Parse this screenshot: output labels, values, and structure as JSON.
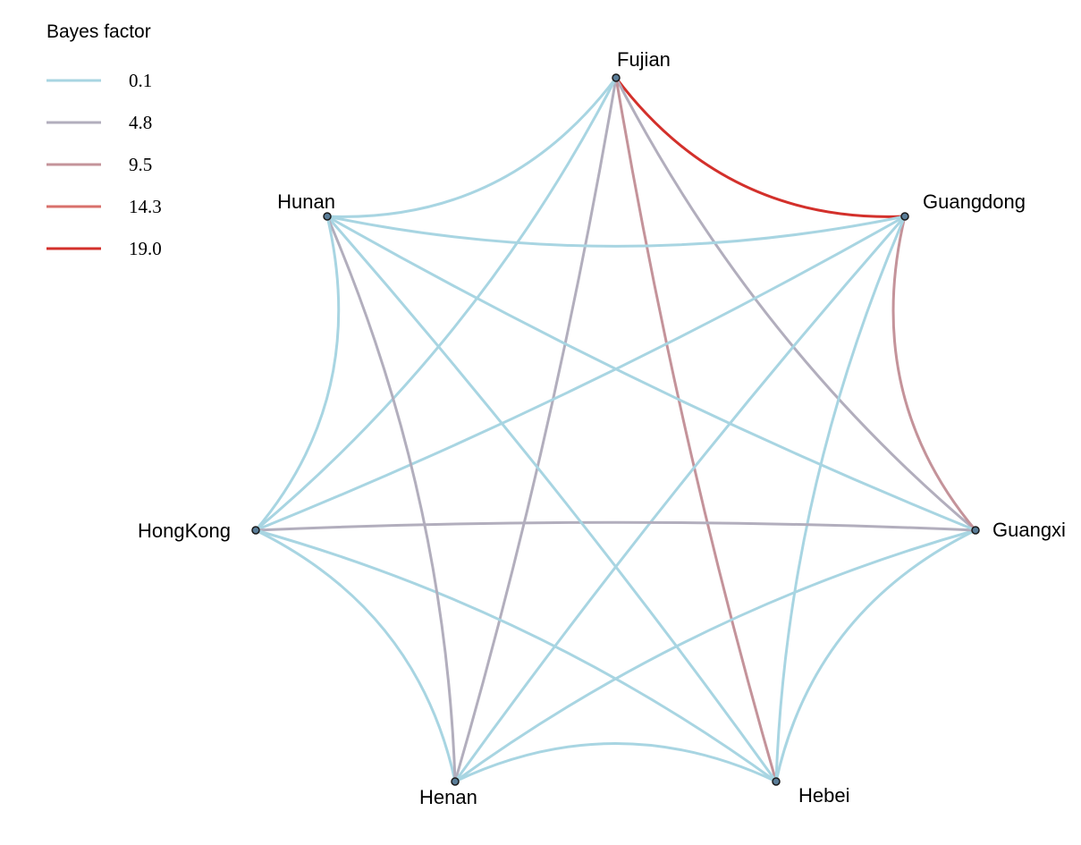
{
  "legend": {
    "title": "Bayes factor",
    "items": [
      {
        "label": "0.1",
        "color": "#a8d5e2"
      },
      {
        "label": "4.8",
        "color": "#b2aebd"
      },
      {
        "label": "9.5",
        "color": "#c4939a"
      },
      {
        "label": "14.3",
        "color": "#d8706b"
      },
      {
        "label": "19.0",
        "color": "#d3302b"
      }
    ]
  },
  "nodes": [
    {
      "id": "fujian",
      "label": "Fujian",
      "color": "#5a7d98"
    },
    {
      "id": "guangdong",
      "label": "Guangdong",
      "color": "#5a7d98"
    },
    {
      "id": "guangxi",
      "label": "Guangxi",
      "color": "#5a7d98"
    },
    {
      "id": "hebei",
      "label": "Hebei",
      "color": "#5a7d98"
    },
    {
      "id": "henan",
      "label": "Henan",
      "color": "#5a7d98"
    },
    {
      "id": "hongkong",
      "label": "HongKong",
      "color": "#5a7d98"
    },
    {
      "id": "hunan",
      "label": "Hunan",
      "color": "#5a7d98"
    }
  ],
  "edges": [
    {
      "from": "fujian",
      "to": "guangdong",
      "bayes_factor": 19.0
    },
    {
      "from": "fujian",
      "to": "guangxi",
      "bayes_factor": 4.8
    },
    {
      "from": "fujian",
      "to": "hebei",
      "bayes_factor": 9.5
    },
    {
      "from": "fujian",
      "to": "henan",
      "bayes_factor": 4.8
    },
    {
      "from": "fujian",
      "to": "hongkong",
      "bayes_factor": 0.1
    },
    {
      "from": "fujian",
      "to": "hunan",
      "bayes_factor": 0.1
    },
    {
      "from": "guangdong",
      "to": "guangxi",
      "bayes_factor": 9.5
    },
    {
      "from": "guangdong",
      "to": "hebei",
      "bayes_factor": 0.1
    },
    {
      "from": "guangdong",
      "to": "henan",
      "bayes_factor": 0.1
    },
    {
      "from": "guangdong",
      "to": "hongkong",
      "bayes_factor": 0.1
    },
    {
      "from": "guangdong",
      "to": "hunan",
      "bayes_factor": 0.1
    },
    {
      "from": "guangxi",
      "to": "hebei",
      "bayes_factor": 0.1
    },
    {
      "from": "guangxi",
      "to": "henan",
      "bayes_factor": 0.1
    },
    {
      "from": "guangxi",
      "to": "hongkong",
      "bayes_factor": 4.8
    },
    {
      "from": "guangxi",
      "to": "hunan",
      "bayes_factor": 0.1
    },
    {
      "from": "hebei",
      "to": "henan",
      "bayes_factor": 0.1
    },
    {
      "from": "hebei",
      "to": "hongkong",
      "bayes_factor": 0.1
    },
    {
      "from": "hebei",
      "to": "hunan",
      "bayes_factor": 0.1
    },
    {
      "from": "henan",
      "to": "hongkong",
      "bayes_factor": 0.1
    },
    {
      "from": "henan",
      "to": "hunan",
      "bayes_factor": 4.8
    },
    {
      "from": "hongkong",
      "to": "hunan",
      "bayes_factor": 0.1
    }
  ]
}
